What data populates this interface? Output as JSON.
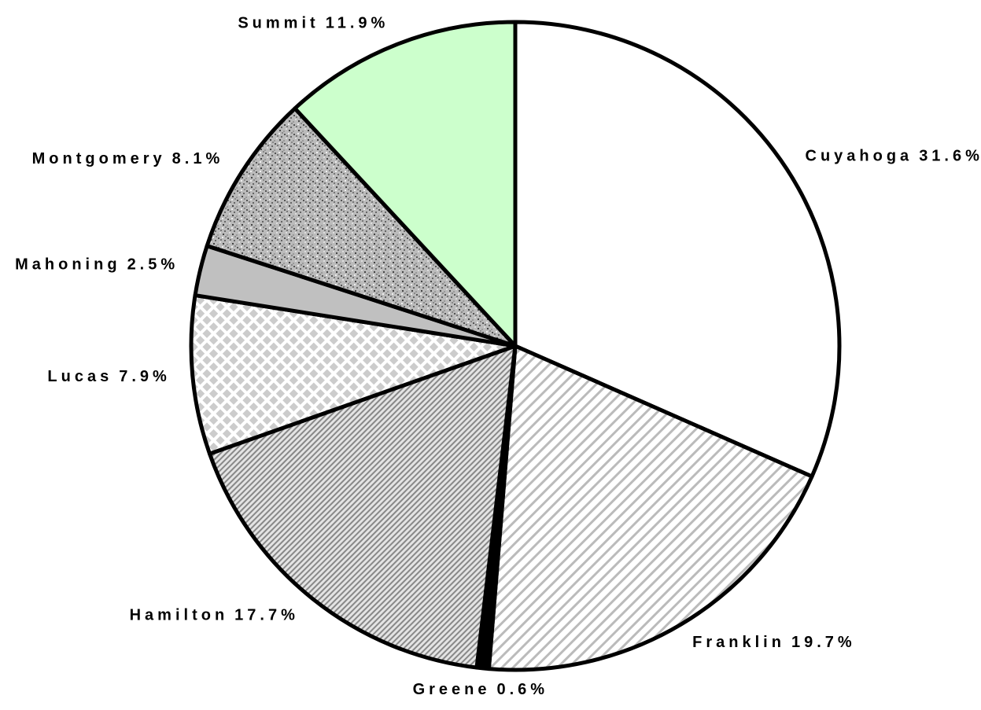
{
  "chart_data": {
    "type": "pie",
    "categories": [
      "Cuyahoga",
      "Franklin",
      "Greene",
      "Hamilton",
      "Lucas",
      "Mahoning",
      "Montgomery",
      "Summit"
    ],
    "values": [
      31.6,
      19.7,
      0.6,
      17.7,
      7.9,
      2.5,
      8.1,
      11.9
    ],
    "value_labels": [
      "31.6%",
      "19.7%",
      "0.6%",
      "17.7%",
      "7.9%",
      "2.5%",
      "8.1%",
      "11.9%"
    ],
    "colors": [
      "#ffffff",
      "#bbbbbb",
      "#000000",
      "#999999",
      "#cccccc",
      "#c0c0c0",
      "#888888",
      "#ccffcc"
    ],
    "patterns": [
      "solid",
      "wide-hatch",
      "solid",
      "fine-hatch",
      "checker",
      "solid",
      "noise",
      "solid"
    ]
  }
}
